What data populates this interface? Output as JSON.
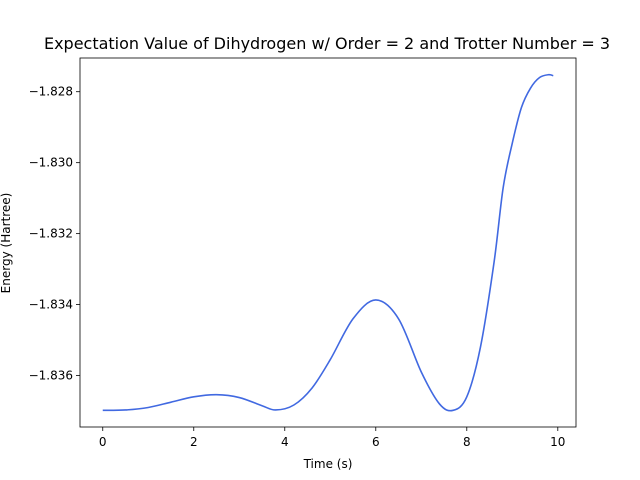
{
  "chart_data": {
    "type": "line",
    "title": "Expectation Value of Dihydrogen w/ Order = 2 and Trotter Number = 3",
    "xlabel": "Time (s)",
    "ylabel": "Energy (Hartree)",
    "xlim": [
      -0.5,
      10.4
    ],
    "ylim": [
      -1.83745,
      -1.82705
    ],
    "x_ticks": [
      0,
      2,
      4,
      6,
      8,
      10
    ],
    "y_ticks": [
      -1.836,
      -1.834,
      -1.832,
      -1.83,
      -1.828
    ],
    "x_tick_labels": [
      "0",
      "2",
      "4",
      "6",
      "8",
      "10"
    ],
    "y_tick_labels": [
      "−1.836",
      "−1.834",
      "−1.832",
      "−1.830",
      "−1.828"
    ],
    "grid": false,
    "series": [
      {
        "color": "#4169e1",
        "x": [
          0,
          0.5,
          1,
          1.5,
          2,
          2.5,
          3,
          3.5,
          3.8,
          4.2,
          4.6,
          5,
          5.5,
          6,
          6.5,
          7,
          7.4,
          7.7,
          8,
          8.3,
          8.6,
          8.8,
          9,
          9.2,
          9.4,
          9.6,
          9.8,
          9.9
        ],
        "y": [
          -1.83698,
          -1.83697,
          -1.8369,
          -1.83675,
          -1.8366,
          -1.83654,
          -1.83662,
          -1.83685,
          -1.83697,
          -1.83683,
          -1.83635,
          -1.83555,
          -1.8344,
          -1.83387,
          -1.8344,
          -1.8359,
          -1.8368,
          -1.83698,
          -1.8366,
          -1.8352,
          -1.8328,
          -1.8307,
          -1.82945,
          -1.82845,
          -1.8279,
          -1.8276,
          -1.82752,
          -1.82755
        ]
      }
    ]
  }
}
